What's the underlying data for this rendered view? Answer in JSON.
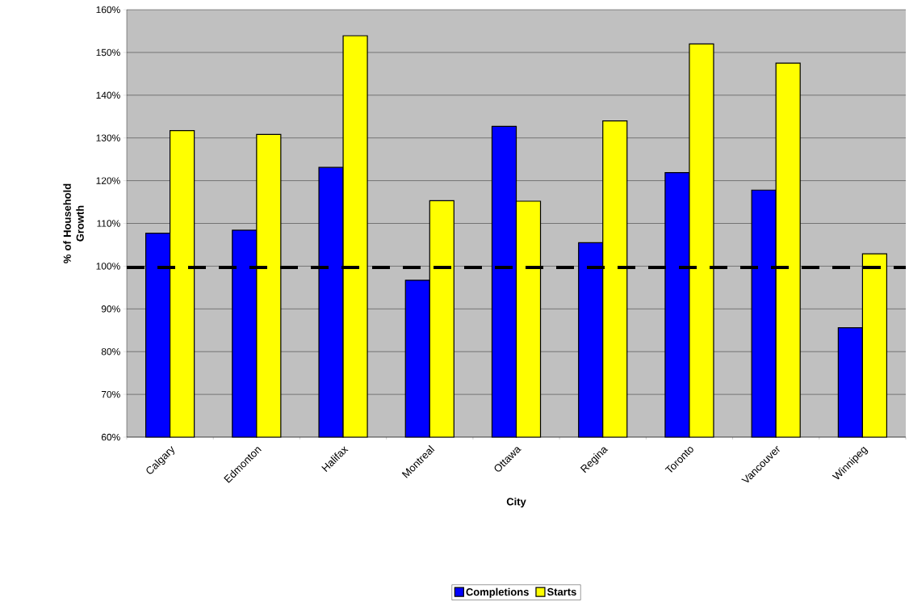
{
  "chart_data": {
    "type": "bar",
    "xlabel": "City",
    "ylabel": "% of Household Growth",
    "categories": [
      "Calgary",
      "Edmonton",
      "Halifax",
      "Montreal",
      "Ottawa",
      "Regina",
      "Toronto",
      "Vancouver",
      "Winnipeg"
    ],
    "series": [
      {
        "name": "Completions",
        "color": "#0000ff",
        "values": [
          107.7,
          108.4,
          123.1,
          96.7,
          132.7,
          105.5,
          121.9,
          117.8,
          85.6
        ]
      },
      {
        "name": "Starts",
        "color": "#ffff00",
        "values": [
          131.7,
          130.8,
          153.9,
          115.3,
          115.2,
          134.0,
          152.0,
          147.5,
          102.9
        ]
      }
    ],
    "ylim": [
      60,
      160
    ],
    "yticks": [
      {
        "value": 60,
        "label": "60%"
      },
      {
        "value": 70,
        "label": "70%"
      },
      {
        "value": 80,
        "label": "80%"
      },
      {
        "value": 90,
        "label": "90%"
      },
      {
        "value": 100,
        "label": "100%"
      },
      {
        "value": 110,
        "label": "110%"
      },
      {
        "value": 120,
        "label": "120%"
      },
      {
        "value": 130,
        "label": "130%"
      },
      {
        "value": 140,
        "label": "140%"
      },
      {
        "value": 150,
        "label": "150%"
      },
      {
        "value": 160,
        "label": "160%"
      }
    ],
    "ref_lines": [
      {
        "axis": "y",
        "value": 99.7,
        "color": "#000000",
        "line_style": "dashed"
      }
    ],
    "grid": "y",
    "legend": "bottom"
  }
}
